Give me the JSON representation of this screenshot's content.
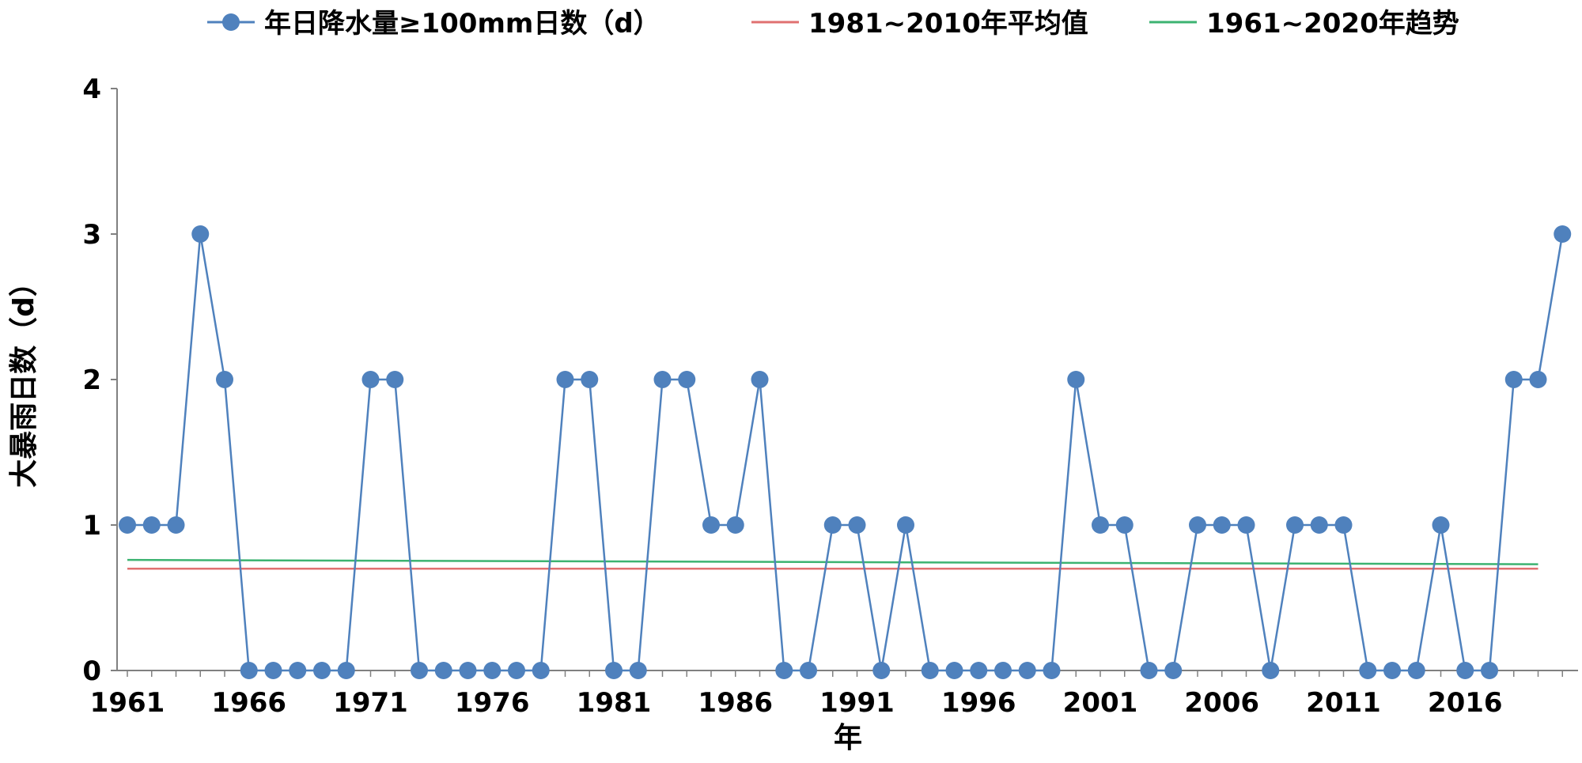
{
  "chart_data": {
    "type": "line",
    "title": "",
    "xlabel": "年",
    "ylabel": "大暴雨日数（d）",
    "x": [
      1961,
      1962,
      1963,
      1964,
      1965,
      1966,
      1967,
      1968,
      1969,
      1970,
      1971,
      1972,
      1973,
      1974,
      1975,
      1976,
      1977,
      1978,
      1979,
      1980,
      1981,
      1982,
      1983,
      1984,
      1985,
      1986,
      1987,
      1988,
      1989,
      1990,
      1991,
      1992,
      1993,
      1994,
      1995,
      1996,
      1997,
      1998,
      1999,
      2000,
      2001,
      2002,
      2003,
      2004,
      2005,
      2006,
      2007,
      2008,
      2009,
      2010,
      2011,
      2012,
      2013,
      2014,
      2015,
      2016,
      2017,
      2018,
      2019,
      2020
    ],
    "x_tick_labels": [
      "1961",
      "1966",
      "1971",
      "1976",
      "1981",
      "1986",
      "1991",
      "1996",
      "2001",
      "2006",
      "2011",
      "2016"
    ],
    "y_tick_labels": [
      "0",
      "1",
      "2",
      "3",
      "4"
    ],
    "ylim": [
      0,
      4
    ],
    "legend_position": "top",
    "grid": false,
    "series": [
      {
        "name": "年日降水量≥100mm日数（d）",
        "color": "#4f81bd",
        "marker": "circle",
        "values": [
          1,
          1,
          1,
          3,
          2,
          0,
          0,
          0,
          0,
          0,
          2,
          2,
          0,
          0,
          0,
          0,
          0,
          0,
          2,
          2,
          0,
          0,
          2,
          2,
          1,
          1,
          2,
          0,
          0,
          1,
          1,
          0,
          1,
          0,
          0,
          0,
          0,
          0,
          0,
          2,
          1,
          1,
          0,
          0,
          1,
          1,
          1,
          0,
          1,
          1,
          1,
          0,
          0,
          0,
          1,
          0,
          0,
          2,
          2,
          3
        ]
      },
      {
        "name": "1981~2010年平均值",
        "color": "#e07070",
        "x": [
          1961,
          2019
        ],
        "values": [
          0.7,
          0.7
        ]
      },
      {
        "name": "1961~2020年趋势",
        "color": "#3cb371",
        "x": [
          1961,
          2019
        ],
        "values": [
          0.76,
          0.73
        ]
      }
    ]
  }
}
